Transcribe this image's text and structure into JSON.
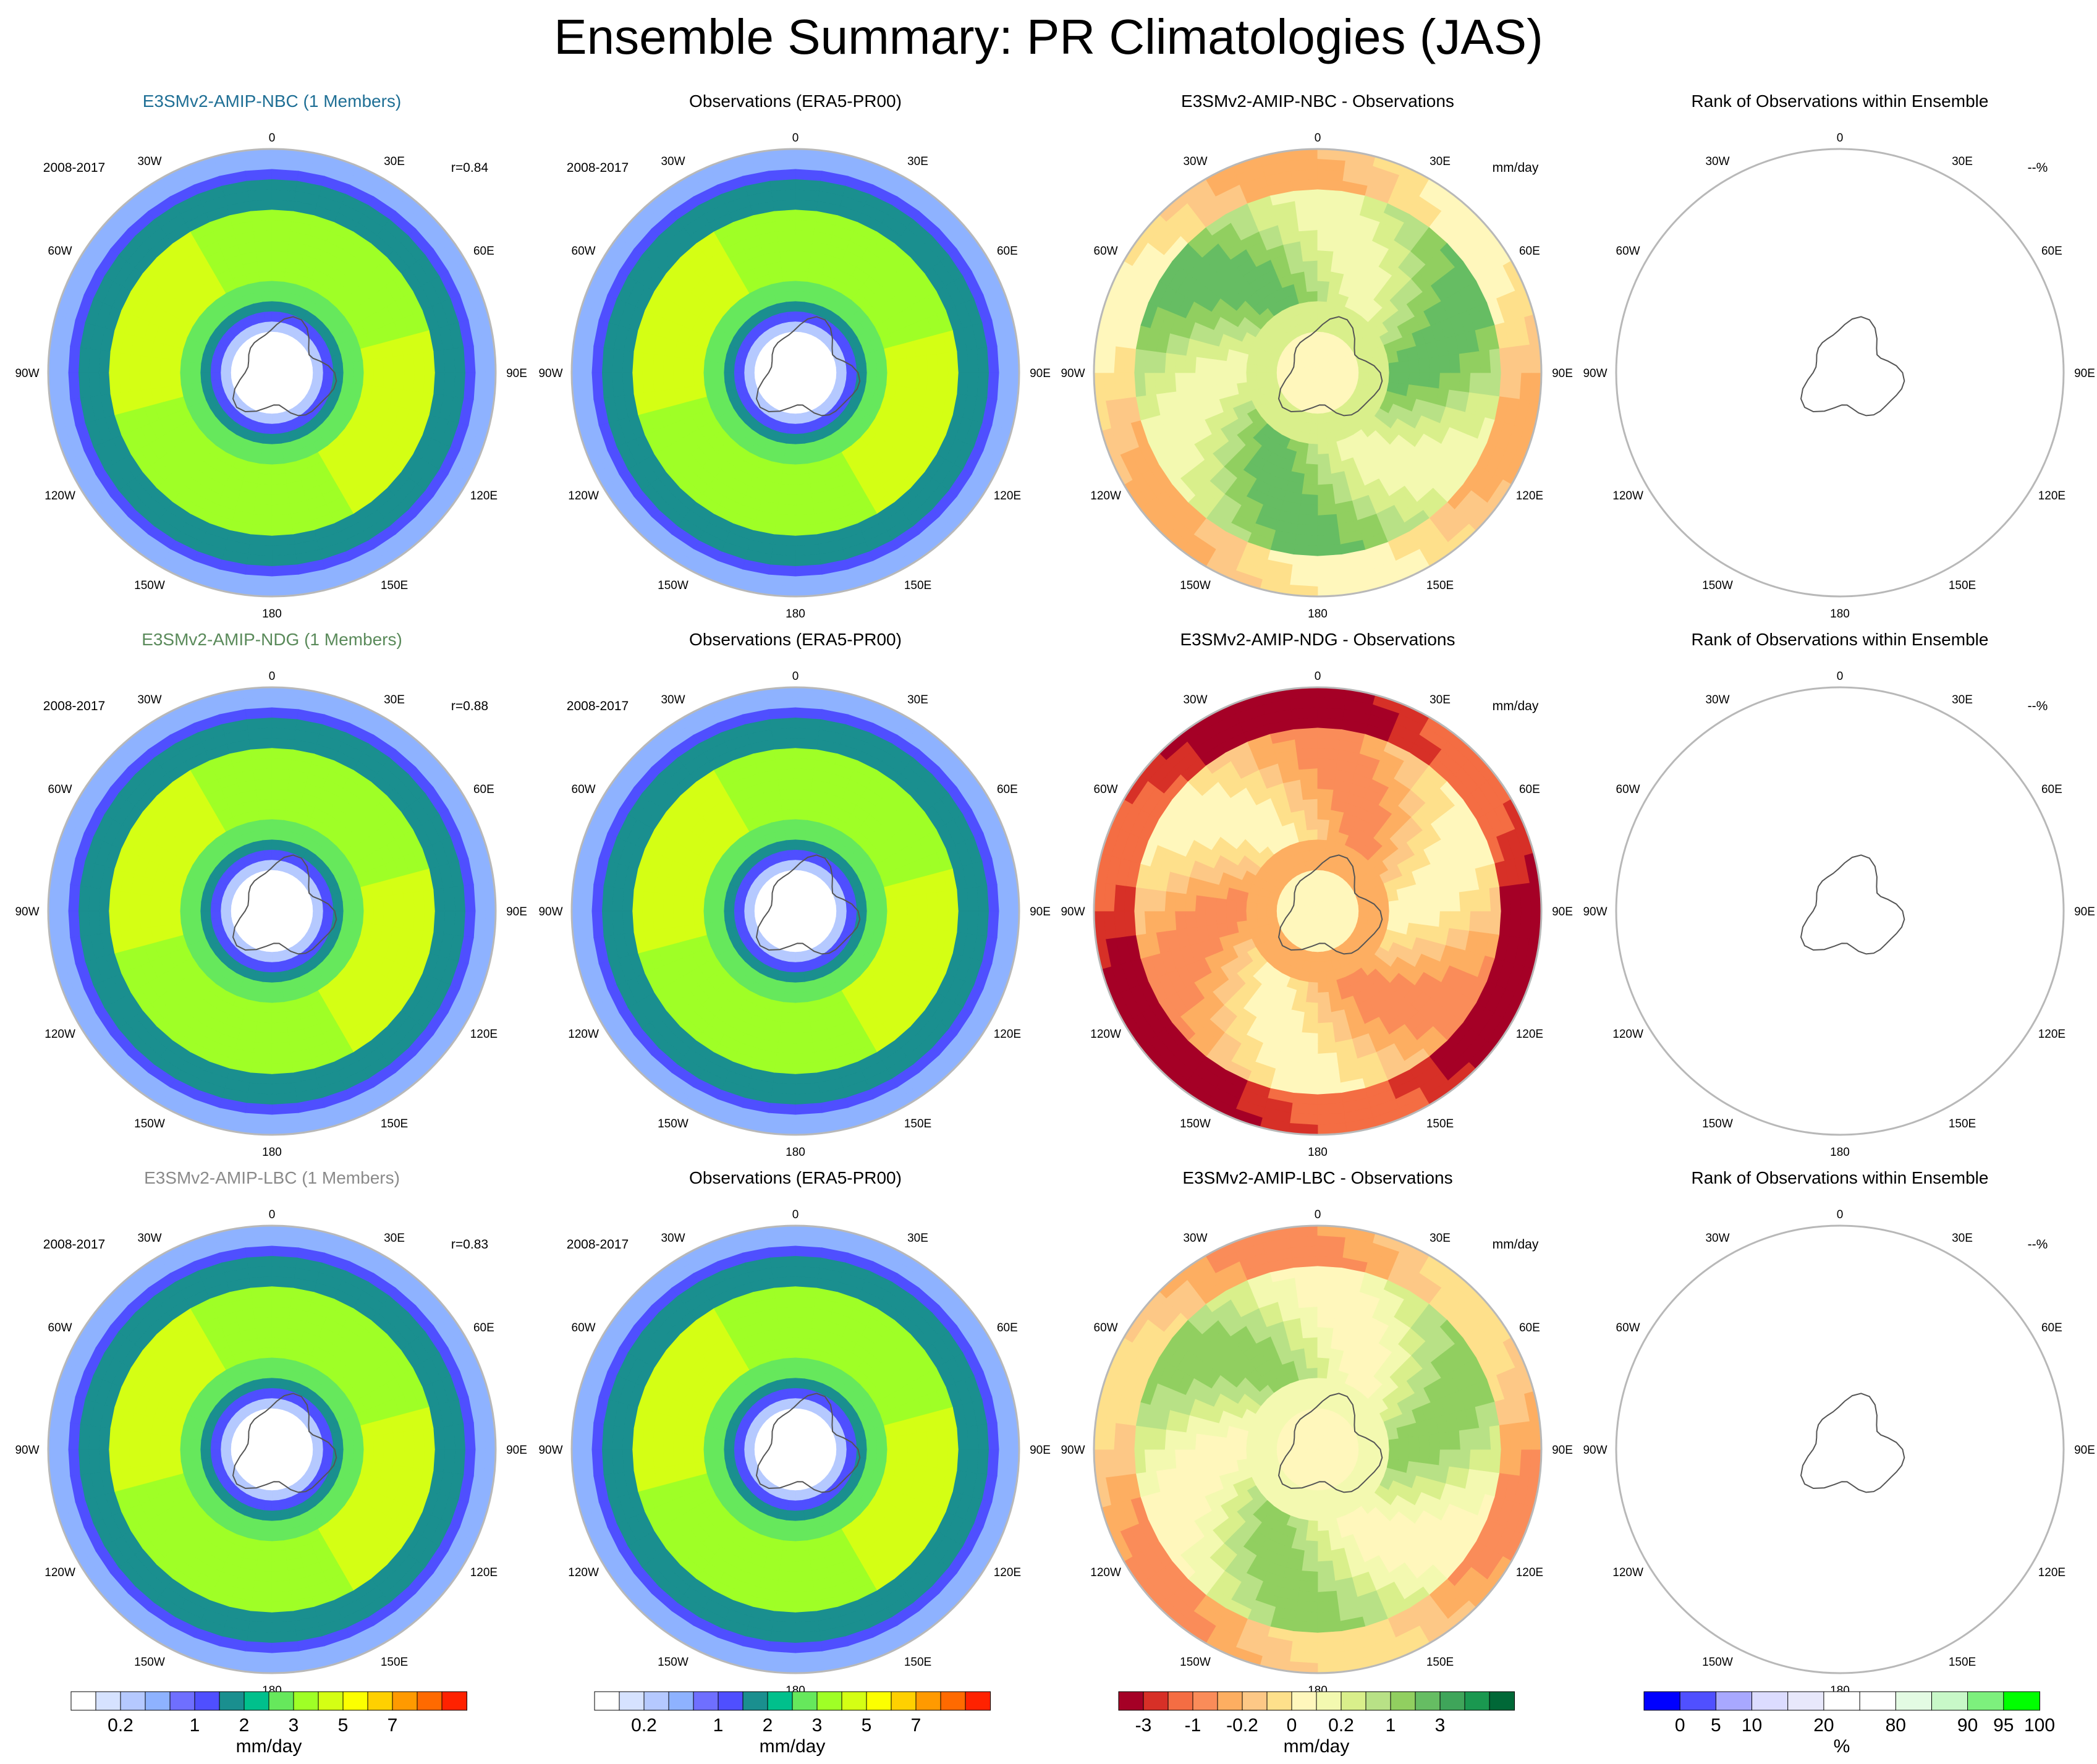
{
  "title": "Ensemble Summary: PR Climatologies (JAS)",
  "colors": {
    "title_nbc": "#1f6f95",
    "title_ndg": "#5a8a5a",
    "title_lbc": "#8a8a8a",
    "title_default": "#000000",
    "map_border": "#b8b8b8",
    "coast": "#555555"
  },
  "lon_labels": [
    "0",
    "30E",
    "60E",
    "90E",
    "120E",
    "150E",
    "180",
    "150W",
    "120W",
    "90W",
    "60W",
    "30W"
  ],
  "chart_data": [
    {
      "type": "heatmap",
      "row": 0,
      "col": 0,
      "kind": "pr",
      "title": "E3SMv2-AMIP-NBC (1 Members)",
      "title_color": "title_nbc",
      "left_note": "2008-2017",
      "right_note": "r=0.84"
    },
    {
      "type": "heatmap",
      "row": 0,
      "col": 1,
      "kind": "pr",
      "title": "Observations (ERA5-PR00)",
      "title_color": "title_default",
      "left_note": "2008-2017",
      "right_note": ""
    },
    {
      "type": "heatmap",
      "row": 0,
      "col": 2,
      "kind": "diff_nbc",
      "title": "E3SMv2-AMIP-NBC - Observations",
      "title_color": "title_default",
      "left_note": "",
      "right_note": "mm/day"
    },
    {
      "type": "heatmap",
      "row": 0,
      "col": 3,
      "kind": "rank",
      "title": "Rank of Observations within Ensemble",
      "title_color": "title_default",
      "left_note": "",
      "right_note": "--%"
    },
    {
      "type": "heatmap",
      "row": 1,
      "col": 0,
      "kind": "pr",
      "title": "E3SMv2-AMIP-NDG (1 Members)",
      "title_color": "title_ndg",
      "left_note": "2008-2017",
      "right_note": "r=0.88"
    },
    {
      "type": "heatmap",
      "row": 1,
      "col": 1,
      "kind": "pr",
      "title": "Observations (ERA5-PR00)",
      "title_color": "title_default",
      "left_note": "2008-2017",
      "right_note": ""
    },
    {
      "type": "heatmap",
      "row": 1,
      "col": 2,
      "kind": "diff_ndg",
      "title": "E3SMv2-AMIP-NDG - Observations",
      "title_color": "title_default",
      "left_note": "",
      "right_note": "mm/day"
    },
    {
      "type": "heatmap",
      "row": 1,
      "col": 3,
      "kind": "rank",
      "title": "Rank of Observations within Ensemble",
      "title_color": "title_default",
      "left_note": "",
      "right_note": "--%"
    },
    {
      "type": "heatmap",
      "row": 2,
      "col": 0,
      "kind": "pr",
      "title": "E3SMv2-AMIP-LBC (1 Members)",
      "title_color": "title_lbc",
      "left_note": "2008-2017",
      "right_note": "r=0.83"
    },
    {
      "type": "heatmap",
      "row": 2,
      "col": 1,
      "kind": "pr",
      "title": "Observations (ERA5-PR00)",
      "title_color": "title_default",
      "left_note": "2008-2017",
      "right_note": ""
    },
    {
      "type": "heatmap",
      "row": 2,
      "col": 2,
      "kind": "diff_lbc",
      "title": "E3SMv2-AMIP-LBC - Observations",
      "title_color": "title_default",
      "left_note": "",
      "right_note": "mm/day"
    },
    {
      "type": "heatmap",
      "row": 2,
      "col": 3,
      "kind": "rank",
      "title": "Rank of Observations within Ensemble",
      "title_color": "title_default",
      "left_note": "",
      "right_note": "--%"
    }
  ],
  "colorbars": [
    {
      "name": "pr",
      "colors": [
        "#ffffff",
        "#d6e2ff",
        "#b5c9ff",
        "#8eb2ff",
        "#6f6fff",
        "#4f4fff",
        "#1a8f8f",
        "#00c08c",
        "#66e85c",
        "#9fff26",
        "#d4ff14",
        "#fcff00",
        "#ffd000",
        "#ff9a00",
        "#ff6a00",
        "#ff2200"
      ],
      "tick_labels": [
        "0.2",
        "1",
        "2",
        "3",
        "5",
        "7"
      ],
      "tick_positions": [
        2,
        5,
        7,
        9,
        11,
        13
      ],
      "unit": "mm/day"
    },
    {
      "name": "pr",
      "colors": [
        "#ffffff",
        "#d6e2ff",
        "#b5c9ff",
        "#8eb2ff",
        "#6f6fff",
        "#4f4fff",
        "#1a8f8f",
        "#00c08c",
        "#66e85c",
        "#9fff26",
        "#d4ff14",
        "#fcff00",
        "#ffd000",
        "#ff9a00",
        "#ff6a00",
        "#ff2200"
      ],
      "tick_labels": [
        "0.2",
        "1",
        "2",
        "3",
        "5",
        "7"
      ],
      "tick_positions": [
        2,
        5,
        7,
        9,
        11,
        13
      ],
      "unit": "mm/day"
    },
    {
      "name": "diff",
      "colors": [
        "#a50026",
        "#d73027",
        "#f46d43",
        "#fa8c59",
        "#fdae61",
        "#fdc886",
        "#fee08b",
        "#fff7bc",
        "#f3f9b0",
        "#d9ef8b",
        "#b8e186",
        "#91cf60",
        "#66bd63",
        "#3fa55a",
        "#1a9850",
        "#006837"
      ],
      "tick_labels": [
        "-3",
        "-1",
        "-0.2",
        "0",
        "0.2",
        "1",
        "3"
      ],
      "tick_positions": [
        1,
        3,
        5,
        7,
        9,
        11,
        13
      ],
      "unit": "mm/day"
    },
    {
      "name": "rank",
      "colors": [
        "#0000ff",
        "#5050ff",
        "#a8a8ff",
        "#dcdcff",
        "#e8e8fb",
        "#ffffff",
        "#ffffff",
        "#e3fbe3",
        "#c8f8c8",
        "#7df07d",
        "#00ff00"
      ],
      "tick_labels": [
        "0",
        "5",
        "10",
        "20",
        "80",
        "90",
        "95",
        "100"
      ],
      "tick_positions": [
        1,
        2,
        3,
        5,
        7,
        9,
        10,
        11
      ],
      "unit": "%"
    }
  ]
}
